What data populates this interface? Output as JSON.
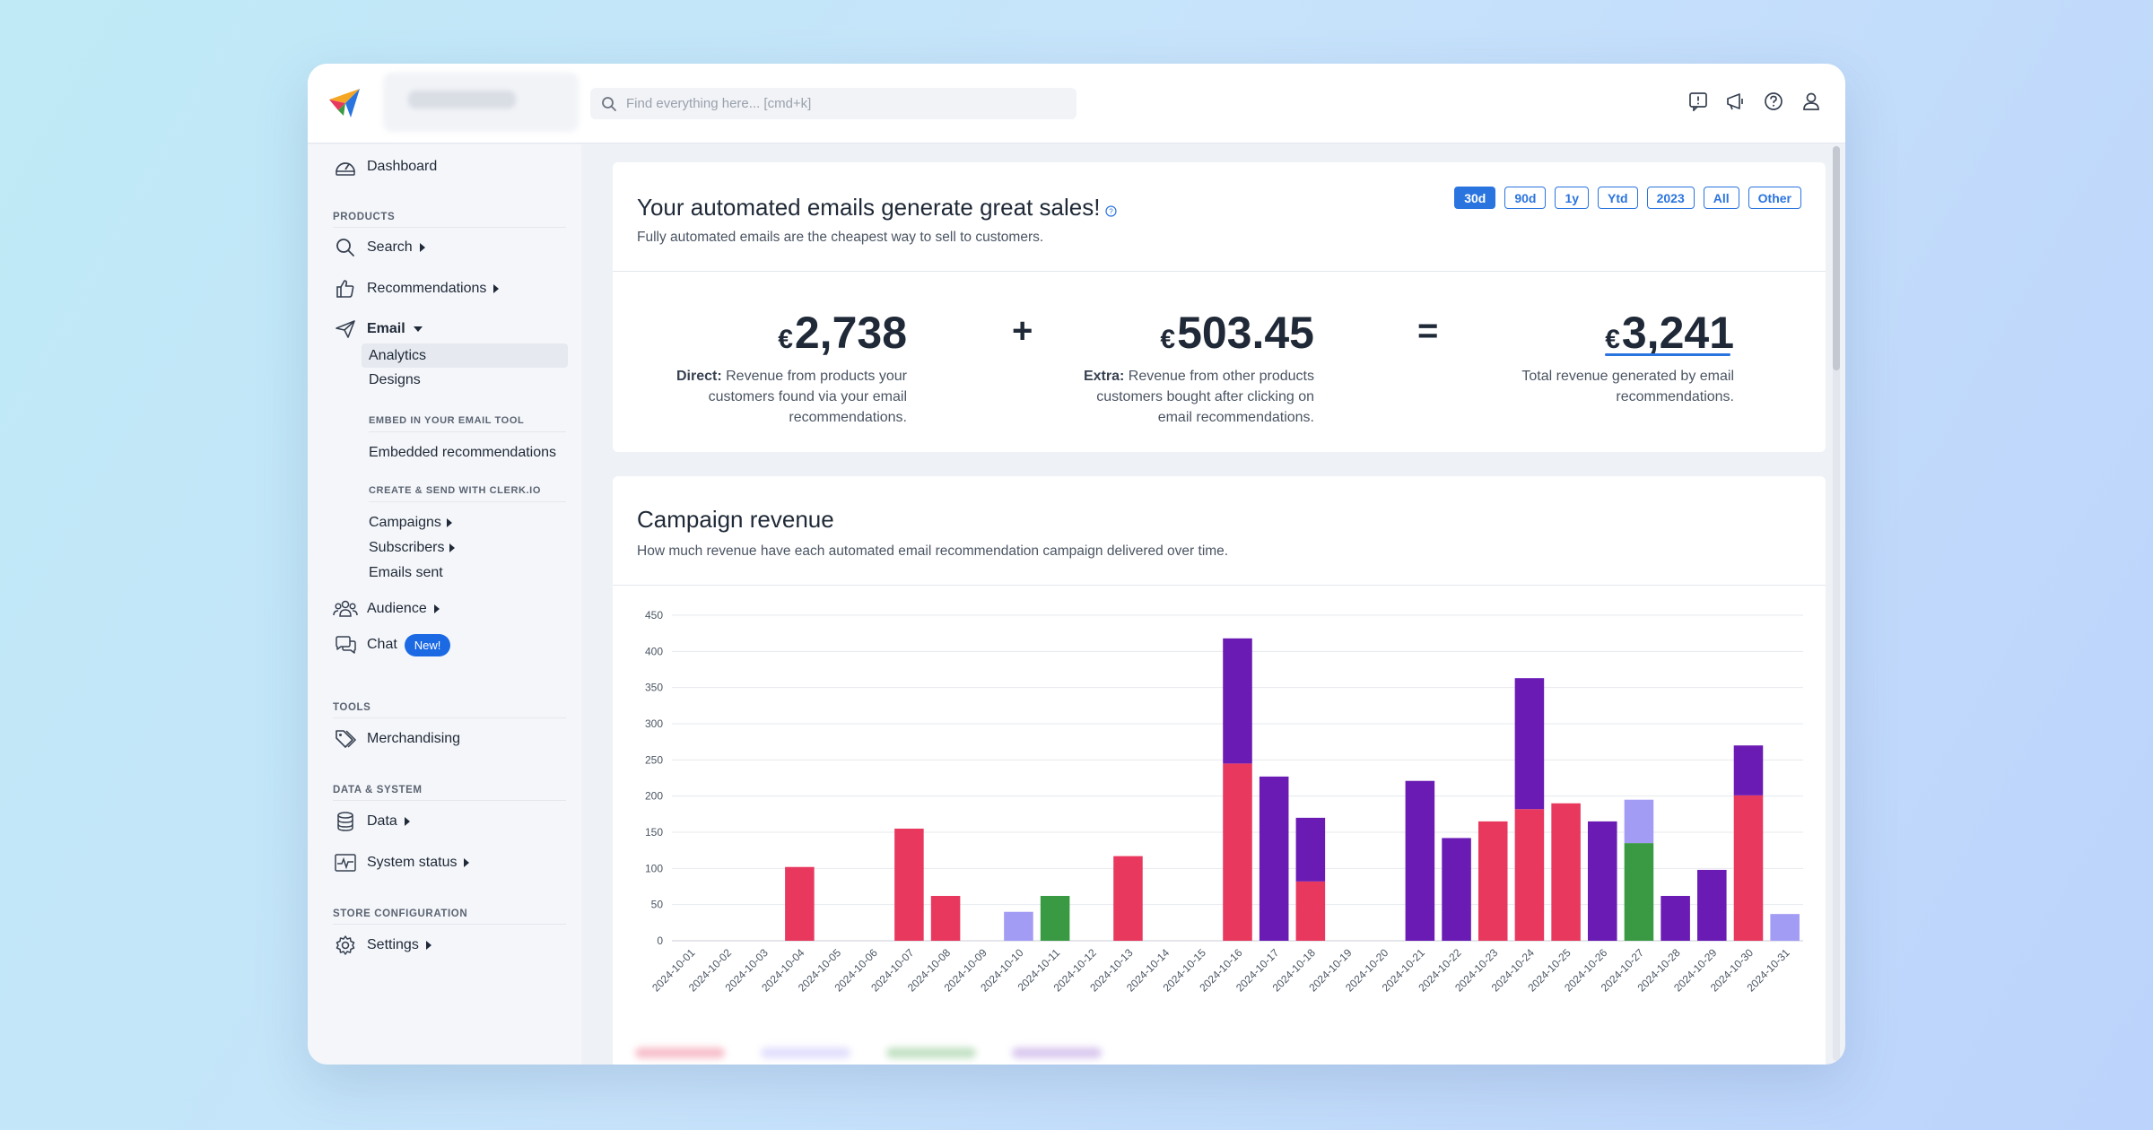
{
  "topbar": {
    "search_placeholder": "Find everything here... [cmd+k]",
    "icons": [
      "feedback-icon",
      "announcement-icon",
      "help-icon",
      "user-icon"
    ]
  },
  "sidebar": {
    "dashboard": "Dashboard",
    "products_label": "PRODUCTS",
    "search": "Search",
    "recommendations": "Recommendations",
    "email": "Email",
    "analytics": "Analytics",
    "designs": "Designs",
    "embed_label": "EMBED IN YOUR EMAIL TOOL",
    "embedded_recommendations": "Embedded recommendations",
    "create_label": "CREATE & SEND WITH CLERK.IO",
    "campaigns": "Campaigns",
    "subscribers": "Subscribers",
    "emails_sent": "Emails sent",
    "audience": "Audience",
    "chat": "Chat",
    "chat_badge": "New!",
    "tools_label": "TOOLS",
    "merchandising": "Merchandising",
    "data_label": "DATA & SYSTEM",
    "data": "Data",
    "system_status": "System status",
    "store_label": "STORE CONFIGURATION",
    "settings": "Settings"
  },
  "summary": {
    "title": "Your automated emails generate great sales!",
    "subtitle": "Fully automated emails are the cheapest way to sell to customers.",
    "periods": [
      "30d",
      "90d",
      "1y",
      "Ytd",
      "2023",
      "All",
      "Other"
    ],
    "active_period": "30d",
    "currency": "€",
    "direct_amount": "2,738",
    "direct_label": "Direct:",
    "direct_desc_1": "Revenue from products your",
    "direct_desc_2": "customers found via your email",
    "direct_desc_3": "recommendations.",
    "plus": "+",
    "extra_amount": "503.45",
    "extra_label": "Extra:",
    "extra_desc_1": "Revenue from other products",
    "extra_desc_2": "customers bought after clicking on",
    "extra_desc_3": "email recommendations.",
    "equals": "=",
    "total_amount": "3,241",
    "total_desc_1": "Total revenue generated by email",
    "total_desc_2": "recommendations."
  },
  "campaign": {
    "title": "Campaign revenue",
    "subtitle": "How much revenue have each automated email recommendation campaign delivered over time."
  },
  "colors": {
    "accent": "#2a74df",
    "series_red": "#e8385e",
    "series_purple": "#6a1bb4",
    "series_green": "#3a9a44",
    "series_lavender": "#a39cf4"
  },
  "chart_data": {
    "type": "bar",
    "stacked": true,
    "ylim": [
      0,
      450
    ],
    "yticks": [
      0,
      50,
      100,
      150,
      200,
      250,
      300,
      350,
      400,
      450
    ],
    "grid": true,
    "categories": [
      "2024-10-01",
      "2024-10-02",
      "2024-10-03",
      "2024-10-04",
      "2024-10-05",
      "2024-10-06",
      "2024-10-07",
      "2024-10-08",
      "2024-10-09",
      "2024-10-10",
      "2024-10-11",
      "2024-10-12",
      "2024-10-13",
      "2024-10-14",
      "2024-10-15",
      "2024-10-16",
      "2024-10-17",
      "2024-10-18",
      "2024-10-19",
      "2024-10-20",
      "2024-10-21",
      "2024-10-22",
      "2024-10-23",
      "2024-10-24",
      "2024-10-25",
      "2024-10-26",
      "2024-10-27",
      "2024-10-28",
      "2024-10-29",
      "2024-10-30",
      "2024-10-31"
    ],
    "series": [
      {
        "color": "#e8385e",
        "values": [
          0,
          0,
          0,
          102,
          0,
          0,
          155,
          62,
          0,
          0,
          0,
          0,
          117,
          0,
          0,
          245,
          0,
          82,
          0,
          0,
          0,
          0,
          165,
          182,
          190,
          0,
          0,
          0,
          0,
          201,
          0
        ]
      },
      {
        "color": "#6a1bb4",
        "values": [
          0,
          0,
          0,
          0,
          0,
          0,
          0,
          0,
          0,
          0,
          0,
          0,
          0,
          0,
          0,
          173,
          227,
          88,
          0,
          0,
          221,
          142,
          0,
          181,
          0,
          165,
          0,
          62,
          98,
          69,
          0
        ]
      },
      {
        "color": "#3a9a44",
        "values": [
          0,
          0,
          0,
          0,
          0,
          0,
          0,
          0,
          0,
          0,
          62,
          0,
          0,
          0,
          0,
          0,
          0,
          0,
          0,
          0,
          0,
          0,
          0,
          0,
          0,
          0,
          135,
          0,
          0,
          0,
          0
        ]
      },
      {
        "color": "#a39cf4",
        "values": [
          0,
          0,
          0,
          0,
          0,
          0,
          0,
          0,
          0,
          40,
          0,
          0,
          0,
          0,
          0,
          0,
          0,
          0,
          0,
          0,
          0,
          0,
          0,
          0,
          0,
          0,
          60,
          0,
          0,
          0,
          37
        ]
      }
    ]
  }
}
